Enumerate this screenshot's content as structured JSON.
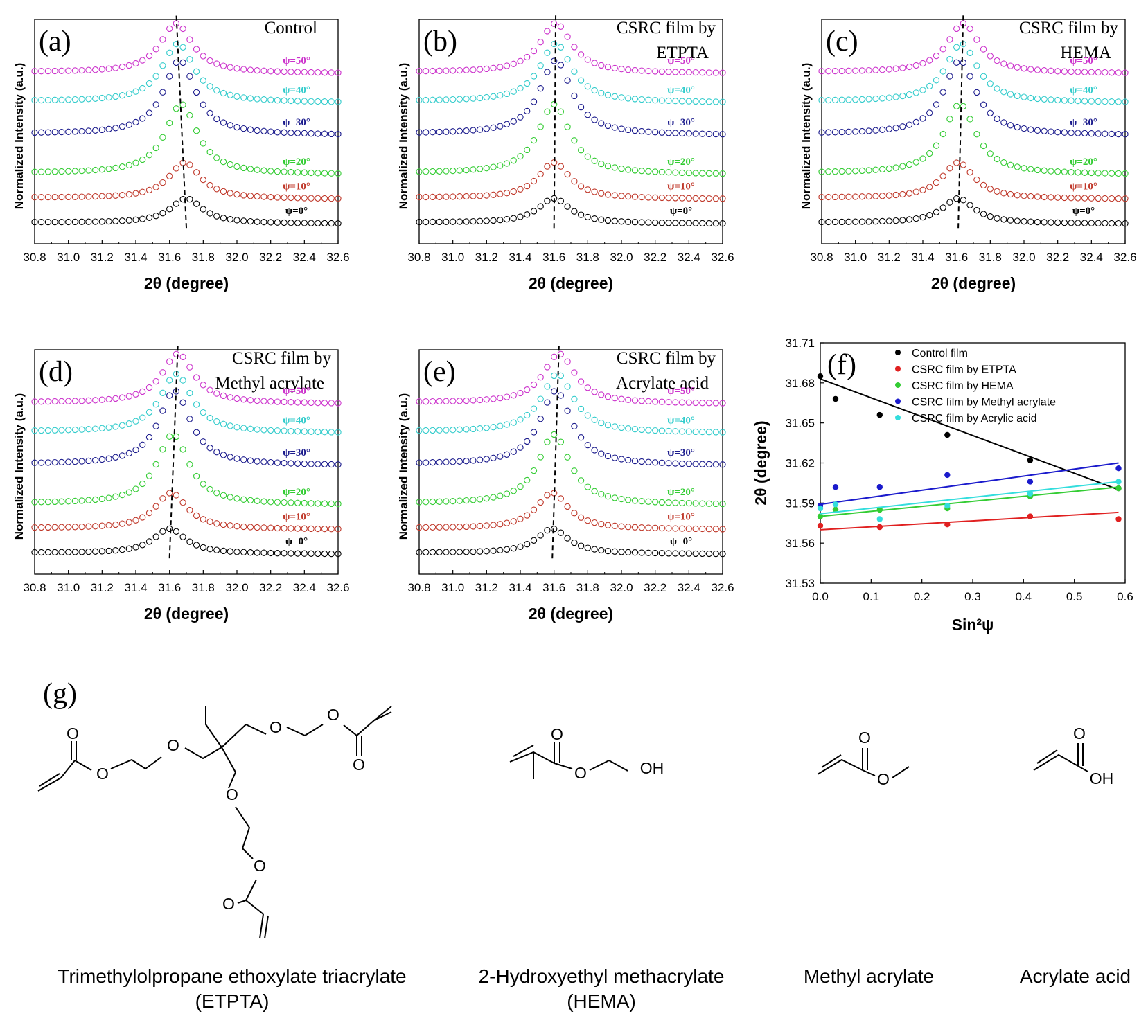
{
  "colors": {
    "c0": "#000000",
    "c10": "#c0392b",
    "c20": "#33cc33",
    "c30": "#1a1a8c",
    "c40": "#33cccc",
    "c50": "#cc33cc",
    "control": "#000000",
    "etpta": "#e02020",
    "hema": "#33cc33",
    "methyl": "#1a1acc",
    "acrylic": "#33dddd"
  },
  "psi_labels": [
    "ψ=0°",
    "ψ=10°",
    "ψ=20°",
    "ψ=30°",
    "ψ=40°",
    "ψ=50°"
  ],
  "axis_xticks": [
    "30.8",
    "31.0",
    "31.2",
    "31.4",
    "31.6",
    "31.8",
    "32.0",
    "32.2",
    "32.4",
    "32.6"
  ],
  "chart_data": [
    {
      "type": "line",
      "panel": "(a)",
      "title": "Control",
      "xlabel": "2θ (degree)",
      "ylabel": "Normalized Intensity (a.u.)",
      "xlim": [
        30.8,
        32.6
      ],
      "series": [
        {
          "name": "ψ=0°",
          "peak": 31.7
        },
        {
          "name": "ψ=10°",
          "peak": 31.69
        },
        {
          "name": "ψ=20°",
          "peak": 31.67
        },
        {
          "name": "ψ=30°",
          "peak": 31.66
        },
        {
          "name": "ψ=40°",
          "peak": 31.65
        },
        {
          "name": "ψ=50°",
          "peak": 31.64
        }
      ]
    },
    {
      "type": "line",
      "panel": "(b)",
      "title": "CSRC film by ETPTA",
      "xlabel": "2θ (degree)",
      "ylabel": "Normalized Intensity (a.u.)",
      "xlim": [
        30.8,
        32.6
      ],
      "series": [
        {
          "name": "ψ=0°",
          "peak": 31.6
        },
        {
          "name": "ψ=10°",
          "peak": 31.6
        },
        {
          "name": "ψ=20°",
          "peak": 31.6
        },
        {
          "name": "ψ=30°",
          "peak": 31.61
        },
        {
          "name": "ψ=40°",
          "peak": 31.61
        },
        {
          "name": "ψ=50°",
          "peak": 31.61
        }
      ]
    },
    {
      "type": "line",
      "panel": "(c)",
      "title": "CSRC film by HEMA",
      "xlabel": "2θ (degree)",
      "ylabel": "Normalized Intensity (a.u.)",
      "xlim": [
        30.8,
        32.6
      ],
      "series": [
        {
          "name": "ψ=0°",
          "peak": 31.61
        },
        {
          "name": "ψ=10°",
          "peak": 31.61
        },
        {
          "name": "ψ=20°",
          "peak": 31.62
        },
        {
          "name": "ψ=30°",
          "peak": 31.62
        },
        {
          "name": "ψ=40°",
          "peak": 31.63
        },
        {
          "name": "ψ=50°",
          "peak": 31.64
        }
      ]
    },
    {
      "type": "line",
      "panel": "(d)",
      "title": "CSRC film by Methyl acrylate",
      "xlabel": "2θ (degree)",
      "ylabel": "Normalized Intensity (a.u.)",
      "xlim": [
        30.8,
        32.6
      ],
      "series": [
        {
          "name": "ψ=0°",
          "peak": 31.6
        },
        {
          "name": "ψ=10°",
          "peak": 31.61
        },
        {
          "name": "ψ=20°",
          "peak": 31.62
        },
        {
          "name": "ψ=30°",
          "peak": 31.63
        },
        {
          "name": "ψ=40°",
          "peak": 31.64
        },
        {
          "name": "ψ=50°",
          "peak": 31.65
        }
      ]
    },
    {
      "type": "line",
      "panel": "(e)",
      "title": "CSRC film by Acrylate acid",
      "xlabel": "2θ (degree)",
      "ylabel": "Normalized Intensity (a.u.)",
      "xlim": [
        30.8,
        32.6
      ],
      "series": [
        {
          "name": "ψ=0°",
          "peak": 31.59
        },
        {
          "name": "ψ=10°",
          "peak": 31.59
        },
        {
          "name": "ψ=20°",
          "peak": 31.6
        },
        {
          "name": "ψ=30°",
          "peak": 31.61
        },
        {
          "name": "ψ=40°",
          "peak": 31.62
        },
        {
          "name": "ψ=50°",
          "peak": 31.63
        }
      ]
    },
    {
      "type": "scatter",
      "panel": "(f)",
      "xlabel": "Sin²ψ",
      "ylabel": "2θ (degree)",
      "xlim": [
        0.0,
        0.6
      ],
      "ylim": [
        31.53,
        31.71
      ],
      "xticks": [
        "0.0",
        "0.1",
        "0.2",
        "0.3",
        "0.4",
        "0.5",
        "0.6"
      ],
      "yticks": [
        "31.53",
        "31.56",
        "31.59",
        "31.62",
        "31.65",
        "31.68",
        "31.71"
      ],
      "x": [
        0.0,
        0.03,
        0.117,
        0.25,
        0.413,
        0.587
      ],
      "series": [
        {
          "name": "Control film",
          "values": [
            31.685,
            31.668,
            31.656,
            31.641,
            31.622,
            31.601
          ],
          "fit": [
            31.683,
            31.6
          ]
        },
        {
          "name": "CSRC film by ETPTA",
          "values": [
            31.573,
            31.585,
            31.572,
            31.574,
            31.58,
            31.578
          ],
          "fit": [
            31.57,
            31.583
          ]
        },
        {
          "name": "CSRC film by HEMA",
          "values": [
            31.58,
            31.585,
            31.585,
            31.586,
            31.595,
            31.601
          ],
          "fit": [
            31.58,
            31.602
          ]
        },
        {
          "name": "CSRC film by Methyl acrylate",
          "values": [
            31.588,
            31.602,
            31.602,
            31.611,
            31.606,
            31.616
          ],
          "fit": [
            31.589,
            31.62
          ]
        },
        {
          "name": "CSRC film by Acrylic acid",
          "values": [
            31.586,
            31.589,
            31.578,
            31.588,
            31.597,
            31.606
          ],
          "fit": [
            31.582,
            31.606
          ]
        }
      ]
    }
  ],
  "chemicals": {
    "panel_label": "(g)",
    "items": [
      {
        "line1": "Trimethylolpropane ethoxylate triacrylate",
        "line2": "(ETPTA)"
      },
      {
        "line1": "2-Hydroxyethyl methacrylate",
        "line2": "(HEMA)"
      },
      {
        "line1": "Methyl acrylate",
        "line2": ""
      },
      {
        "line1": "Acrylate acid",
        "line2": ""
      }
    ],
    "atom_O": "O",
    "atom_OH": "OH"
  }
}
